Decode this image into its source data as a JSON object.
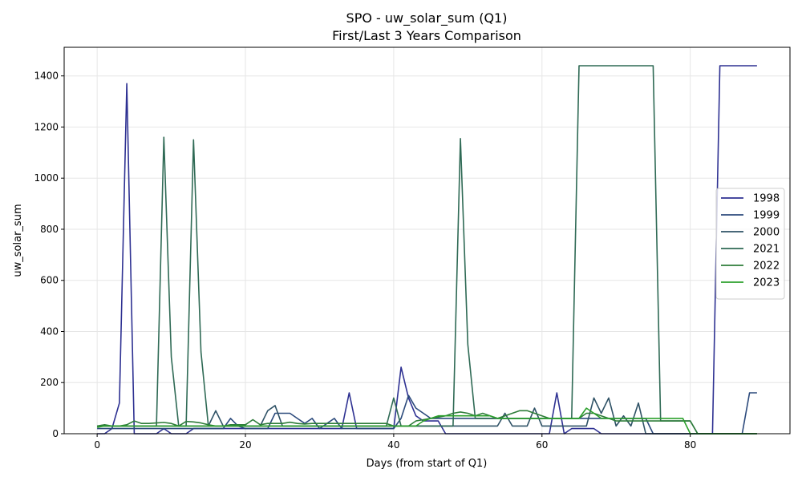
{
  "chart_data": {
    "type": "line",
    "title": "SPO - uw_solar_sum (Q1)",
    "subtitle": "First/Last 3 Years Comparison",
    "xlabel": "Days (from start of Q1)",
    "ylabel": "uw_solar_sum",
    "xlim": [
      -4.45,
      93.45
    ],
    "ylim": [
      0,
      1512
    ],
    "xticks": [
      0,
      20,
      40,
      60,
      80
    ],
    "yticks": [
      0,
      200,
      400,
      600,
      800,
      1000,
      1200,
      1400
    ],
    "grid": true,
    "legend": "center-right",
    "series": [
      {
        "name": "1998",
        "color": "#2e3192",
        "values": [
          0,
          0,
          20,
          120,
          1370,
          0,
          0,
          0,
          0,
          20,
          0,
          0,
          0,
          20,
          20,
          20,
          20,
          20,
          20,
          20,
          20,
          20,
          20,
          20,
          20,
          20,
          20,
          20,
          20,
          20,
          20,
          20,
          20,
          20,
          160,
          20,
          20,
          20,
          20,
          20,
          20,
          260,
          140,
          70,
          50,
          50,
          50,
          0,
          0,
          0,
          0,
          0,
          0,
          0,
          0,
          0,
          0,
          0,
          0,
          0,
          0,
          0,
          160,
          0,
          20,
          20,
          20,
          20,
          0,
          0,
          0,
          0,
          0,
          0,
          0,
          0,
          0,
          0,
          0,
          0,
          0,
          0,
          0,
          0,
          1440,
          1440,
          1440,
          1440,
          1440,
          1440
        ]
      },
      {
        "name": "1999",
        "color": "#2c4a7c",
        "values": [
          20,
          20,
          20,
          20,
          20,
          20,
          20,
          20,
          20,
          20,
          20,
          20,
          20,
          20,
          20,
          20,
          20,
          20,
          60,
          30,
          20,
          20,
          20,
          20,
          80,
          80,
          80,
          60,
          40,
          60,
          20,
          40,
          60,
          20,
          20,
          20,
          20,
          20,
          20,
          20,
          20,
          60,
          150,
          100,
          80,
          60,
          60,
          60,
          60,
          60,
          60,
          60,
          60,
          60,
          60,
          60,
          60,
          60,
          60,
          60,
          60,
          60,
          60,
          60,
          60,
          60,
          60,
          60,
          60,
          60,
          60,
          60,
          60,
          60,
          60,
          0,
          0,
          0,
          0,
          0,
          0,
          0,
          0,
          0,
          0,
          0,
          0,
          0,
          160,
          160
        ]
      },
      {
        "name": "2000",
        "color": "#2f5266",
        "values": [
          30,
          30,
          30,
          30,
          30,
          30,
          30,
          30,
          30,
          30,
          30,
          30,
          30,
          30,
          30,
          30,
          90,
          30,
          30,
          30,
          30,
          30,
          30,
          90,
          110,
          30,
          30,
          30,
          30,
          30,
          30,
          30,
          30,
          30,
          30,
          30,
          30,
          30,
          30,
          30,
          30,
          30,
          30,
          30,
          30,
          30,
          30,
          30,
          30,
          30,
          30,
          30,
          30,
          30,
          30,
          80,
          30,
          30,
          30,
          100,
          30,
          30,
          30,
          30,
          30,
          30,
          30,
          140,
          80,
          140,
          30,
          70,
          30,
          120,
          0,
          0,
          0,
          0,
          0,
          0,
          0,
          0,
          0,
          0,
          0,
          0,
          0,
          0,
          0,
          0
        ]
      },
      {
        "name": "2021",
        "color": "#2f6a55",
        "values": [
          30,
          30,
          30,
          30,
          30,
          30,
          30,
          30,
          30,
          1160,
          300,
          30,
          30,
          1150,
          320,
          30,
          30,
          30,
          30,
          30,
          30,
          30,
          30,
          30,
          30,
          30,
          30,
          30,
          30,
          30,
          30,
          30,
          30,
          30,
          30,
          30,
          30,
          30,
          30,
          30,
          140,
          30,
          30,
          30,
          30,
          30,
          30,
          30,
          30,
          1155,
          350,
          60,
          60,
          60,
          60,
          60,
          60,
          60,
          60,
          60,
          60,
          60,
          60,
          60,
          60,
          1440,
          1440,
          1440,
          1440,
          1440,
          1440,
          1440,
          1440,
          1440,
          1440,
          1440,
          50,
          50,
          50,
          50,
          50,
          0,
          0,
          0,
          0,
          0,
          0,
          0,
          0,
          0
        ]
      },
      {
        "name": "2022",
        "color": "#2e7d3a",
        "values": [
          30,
          35,
          30,
          30,
          35,
          50,
          40,
          40,
          42,
          44,
          40,
          30,
          48,
          46,
          42,
          35,
          30,
          30,
          35,
          35,
          35,
          55,
          35,
          40,
          40,
          40,
          45,
          40,
          38,
          40,
          40,
          40,
          40,
          40,
          40,
          40,
          40,
          40,
          40,
          40,
          30,
          30,
          30,
          50,
          55,
          60,
          65,
          70,
          80,
          85,
          80,
          70,
          80,
          70,
          60,
          70,
          80,
          90,
          90,
          80,
          70,
          60,
          60,
          60,
          60,
          60,
          80,
          80,
          70,
          60,
          50,
          50,
          50,
          50,
          50,
          50,
          50,
          50,
          50,
          50,
          50,
          0,
          0,
          0,
          0,
          0,
          0,
          0,
          0,
          0
        ]
      },
      {
        "name": "2023",
        "color": "#2ca02c",
        "values": [
          25,
          30,
          30,
          30,
          30,
          30,
          30,
          30,
          30,
          30,
          30,
          30,
          30,
          30,
          30,
          30,
          30,
          30,
          30,
          30,
          30,
          30,
          30,
          30,
          30,
          30,
          30,
          30,
          30,
          30,
          30,
          30,
          30,
          30,
          30,
          30,
          30,
          30,
          30,
          30,
          30,
          30,
          30,
          30,
          50,
          60,
          70,
          70,
          70,
          70,
          70,
          70,
          70,
          70,
          60,
          60,
          60,
          60,
          60,
          60,
          60,
          60,
          60,
          60,
          60,
          60,
          100,
          80,
          60,
          60,
          60,
          60,
          60,
          60,
          60,
          60,
          60,
          60,
          60,
          60,
          0,
          0,
          0,
          0,
          0,
          0,
          0,
          0,
          0,
          0
        ]
      }
    ]
  }
}
